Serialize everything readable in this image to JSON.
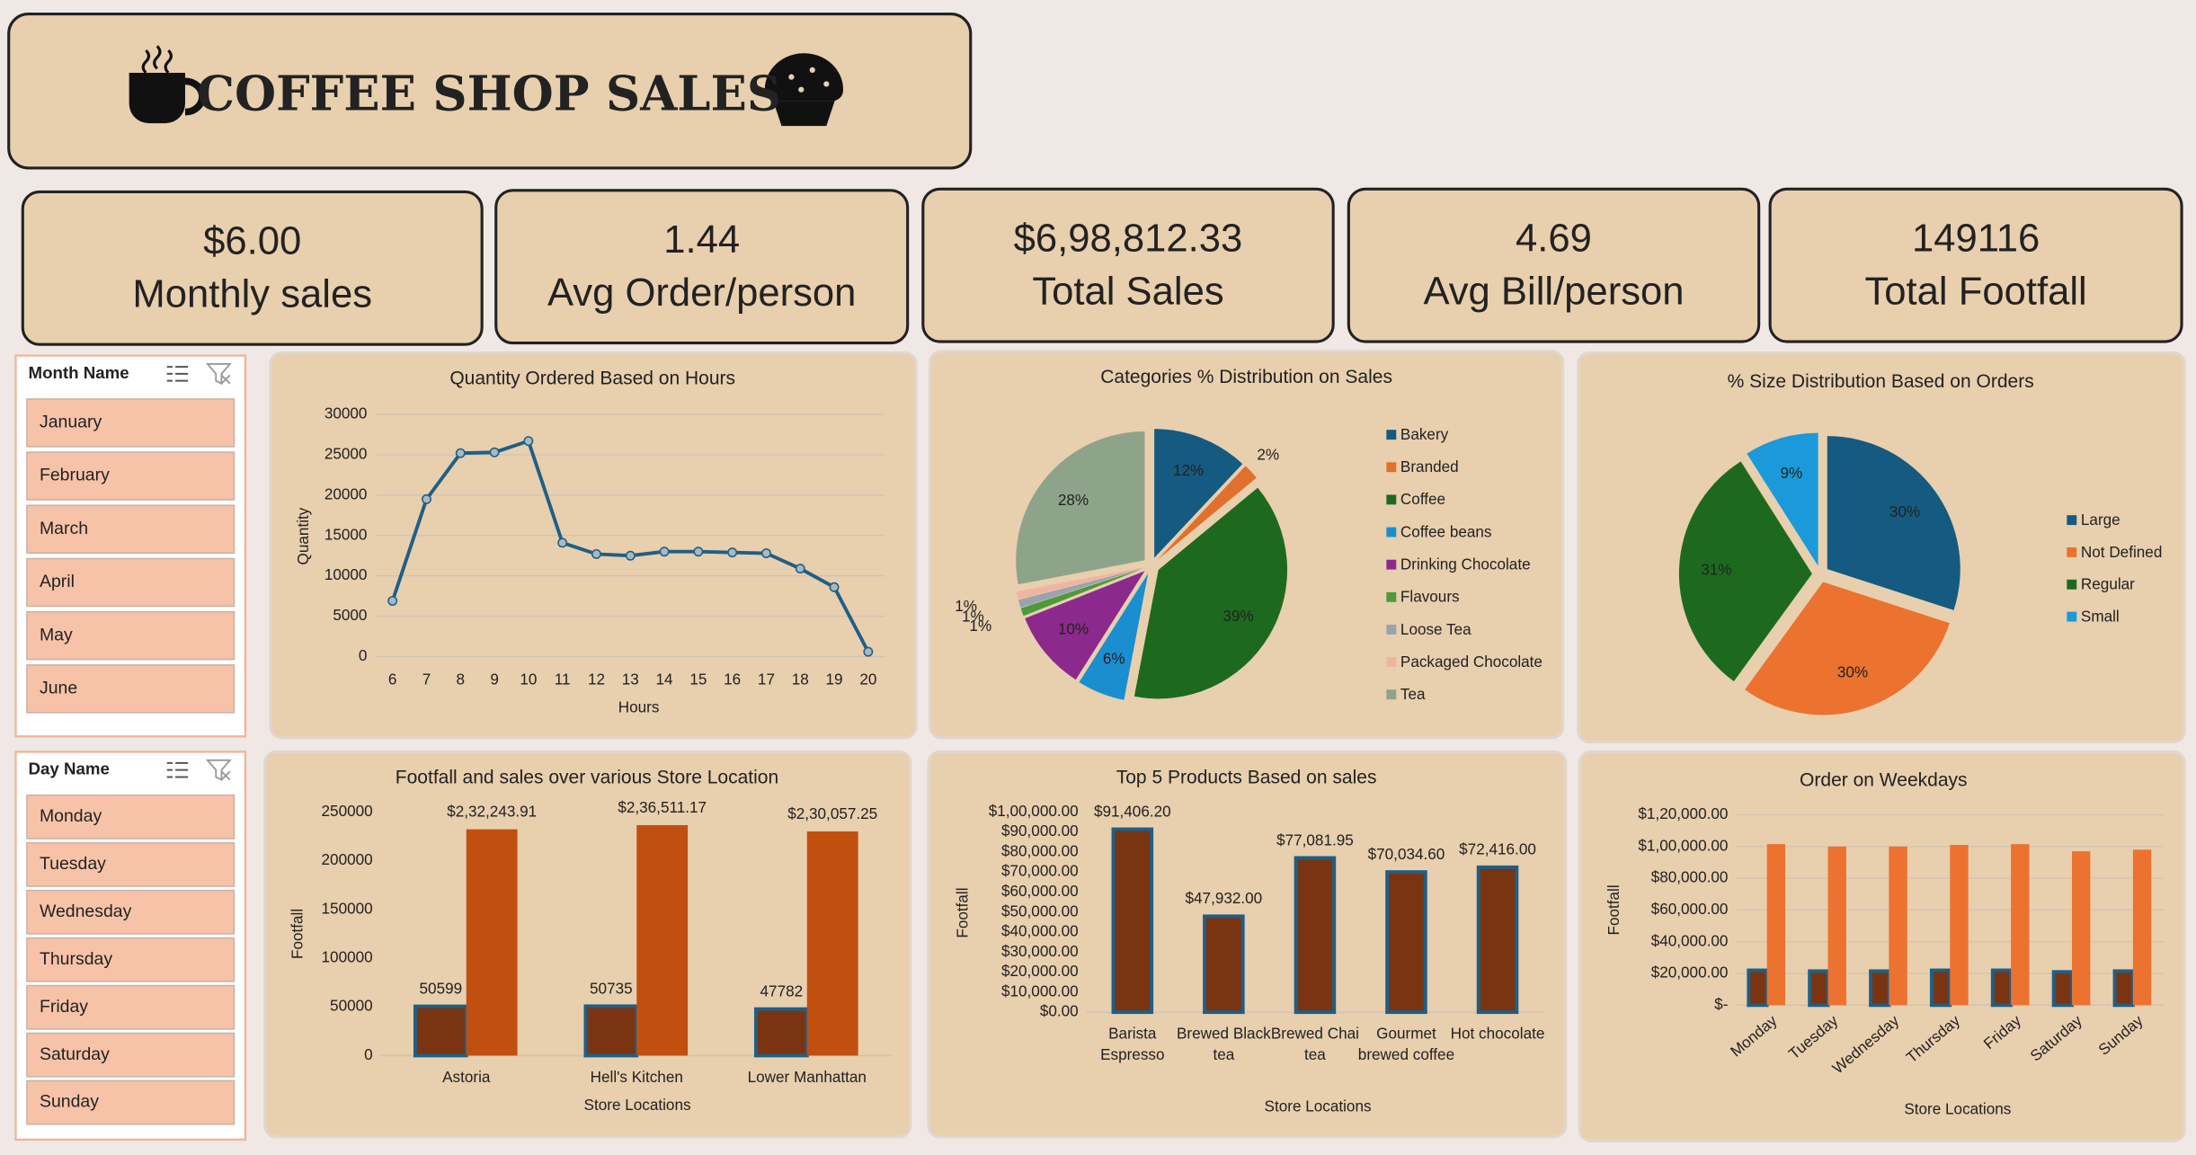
{
  "header": {
    "title": "COFFEE SHOP SALES"
  },
  "kpis": [
    {
      "value": "$6.00",
      "label": "Monthly sales"
    },
    {
      "value": "1.44",
      "label": "Avg Order/person"
    },
    {
      "value": "$6,98,812.33",
      "label": "Total Sales"
    },
    {
      "value": "4.69",
      "label": "Avg Bill/person"
    },
    {
      "value": "149116",
      "label": "Total Footfall"
    }
  ],
  "slicers": [
    {
      "title": "Month Name",
      "items": [
        "January",
        "February",
        "March",
        "April",
        "May",
        "June"
      ]
    },
    {
      "title": "Day Name",
      "items": [
        "Monday",
        "Tuesday",
        "Wednesday",
        "Thursday",
        "Friday",
        "Saturday",
        "Sunday"
      ]
    }
  ],
  "chart_data": [
    {
      "type": "line",
      "title": "Quantity Ordered Based on Hours",
      "x_label": "Hours",
      "y_label": "Quantity",
      "color": "#1f5f85",
      "grid": true,
      "categories": [
        "6",
        "7",
        "8",
        "9",
        "10",
        "11",
        "12",
        "13",
        "14",
        "15",
        "16",
        "17",
        "18",
        "19",
        "20"
      ],
      "values": [
        6900,
        19500,
        25200,
        25300,
        26700,
        14100,
        12700,
        12500,
        13000,
        13000,
        12900,
        12800,
        10900,
        8600,
        600
      ],
      "ylim": [
        0,
        30000
      ],
      "yticks": [
        0,
        5000,
        10000,
        15000,
        20000,
        25000,
        30000
      ]
    },
    {
      "type": "pie",
      "title": "Categories % Distribution on Sales",
      "categories": [
        "Bakery",
        "Branded",
        "Coffee",
        "Coffee beans",
        "Drinking Chocolate",
        "Flavours",
        "Loose Tea",
        "Packaged Chocolate",
        "Tea"
      ],
      "values": [
        12,
        2,
        39,
        6,
        10,
        1,
        1,
        1,
        28
      ],
      "value_labels": [
        "12%",
        "2%",
        "39%",
        "6%",
        "10%",
        "1%",
        "1%",
        "1%",
        "28%"
      ],
      "colors": [
        "#155a80",
        "#e0702e",
        "#1d6a1f",
        "#1a8fd0",
        "#8b2a8c",
        "#4c9a3a",
        "#9aa4b0",
        "#f0b4a2",
        "#8ea48a"
      ]
    },
    {
      "type": "pie",
      "title": "% Size Distribution Based on Orders",
      "categories": [
        "Large",
        "Not Defined",
        "Regular",
        "Small"
      ],
      "values": [
        30,
        30,
        31,
        9
      ],
      "value_labels": [
        "30%",
        "30%",
        "31%",
        "9%"
      ],
      "colors": [
        "#155a80",
        "#ec7230",
        "#1d6a1f",
        "#1a9ad8"
      ]
    },
    {
      "type": "bar",
      "title": "Footfall and sales over various Store Location",
      "x_label": "Store Locations",
      "y_label": "Footfall",
      "grid": false,
      "categories": [
        "Astoria",
        "Hell's Kitchen",
        "Lower Manhattan"
      ],
      "series": [
        {
          "color": "#7a3412",
          "edgecolor": "#1f5f85",
          "values": [
            50599,
            50735,
            47782
          ]
        },
        {
          "color": "#c05010",
          "values": [
            232243.91,
            236511.17,
            230057.25
          ],
          "value_labels": [
            "$2,32,243.91",
            "$2,36,511.17",
            "$2,30,057.25"
          ]
        }
      ],
      "ylim": [
        0,
        250000
      ],
      "yticks": [
        0,
        50000,
        100000,
        150000,
        200000,
        250000
      ]
    },
    {
      "type": "bar",
      "title": "Top 5 Products Based on sales",
      "x_label": "Store Locations",
      "y_label": "Footfall",
      "grid": false,
      "categories": [
        "Barista Espresso",
        "Brewed Black tea",
        "Brewed Chai tea",
        "Gourmet brewed coffee",
        "Hot chocolate"
      ],
      "series": [
        {
          "color": "#7a3412",
          "edgecolor": "#1f5f85",
          "values": [
            91406.2,
            47932,
            77081.95,
            70034.6,
            72416
          ],
          "value_labels": [
            "$91,406.20",
            "$47,932.00",
            "$77,081.95",
            "$70,034.60",
            "$72,416.00"
          ]
        }
      ],
      "ylim": [
        0,
        100000
      ],
      "yticks": [
        {
          "value": 0,
          "label": "$0.00"
        },
        {
          "value": 10000,
          "label": "$10,000.00"
        },
        {
          "value": 20000,
          "label": "$20,000.00"
        },
        {
          "value": 30000,
          "label": "$30,000.00"
        },
        {
          "value": 40000,
          "label": "$40,000.00"
        },
        {
          "value": 50000,
          "label": "$50,000.00"
        },
        {
          "value": 60000,
          "label": "$60,000.00"
        },
        {
          "value": 70000,
          "label": "$70,000.00"
        },
        {
          "value": 80000,
          "label": "$80,000.00"
        },
        {
          "value": 90000,
          "label": "$90,000.00"
        },
        {
          "value": 100000,
          "label": "$1,00,000.00"
        }
      ]
    },
    {
      "type": "bar",
      "title": "Order on Weekdays",
      "x_label": "Store Locations",
      "y_label": "Footfall",
      "grid": true,
      "rotate_labels": true,
      "categories": [
        "Monday",
        "Tuesday",
        "Wednesday",
        "Thursday",
        "Friday",
        "Saturday",
        "Sunday"
      ],
      "series": [
        {
          "color": "#7a3412",
          "edgecolor": "#1f5f85",
          "values": [
            22000,
            21500,
            21500,
            22000,
            22000,
            21000,
            21500
          ]
        },
        {
          "color": "#ec7230",
          "values": [
            101500,
            100000,
            100000,
            101000,
            101500,
            97000,
            98000
          ]
        }
      ],
      "ylim": [
        0,
        120000
      ],
      "yticks": [
        {
          "value": 0,
          "label": "$-"
        },
        {
          "value": 20000,
          "label": "$20,000.00"
        },
        {
          "value": 40000,
          "label": "$40,000.00"
        },
        {
          "value": 60000,
          "label": "$60,000.00"
        },
        {
          "value": 80000,
          "label": "$80,000.00"
        },
        {
          "value": 100000,
          "label": "$1,00,000.00"
        },
        {
          "value": 120000,
          "label": "$1,20,000.00"
        }
      ]
    }
  ]
}
